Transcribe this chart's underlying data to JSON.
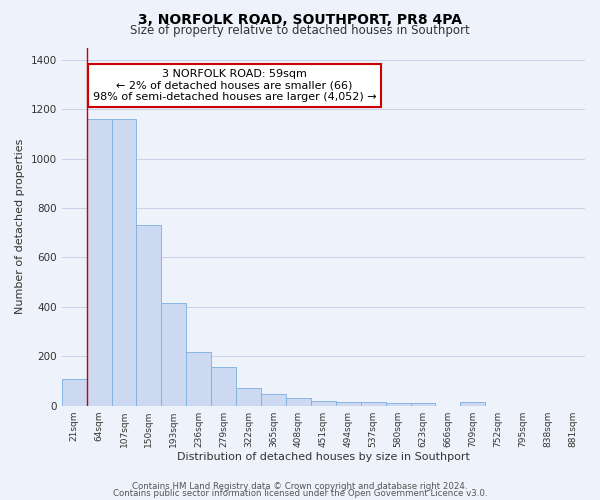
{
  "title": "3, NORFOLK ROAD, SOUTHPORT, PR8 4PA",
  "subtitle": "Size of property relative to detached houses in Southport",
  "xlabel": "Distribution of detached houses by size in Southport",
  "ylabel": "Number of detached properties",
  "bar_labels": [
    "21sqm",
    "64sqm",
    "107sqm",
    "150sqm",
    "193sqm",
    "236sqm",
    "279sqm",
    "322sqm",
    "365sqm",
    "408sqm",
    "451sqm",
    "494sqm",
    "537sqm",
    "580sqm",
    "623sqm",
    "666sqm",
    "709sqm",
    "752sqm",
    "795sqm",
    "838sqm",
    "881sqm"
  ],
  "bar_values": [
    107,
    1160,
    1160,
    730,
    415,
    218,
    155,
    70,
    48,
    30,
    20,
    15,
    13,
    12,
    12,
    0,
    13,
    0,
    0,
    0,
    0
  ],
  "bar_color": "#ccd9f0",
  "bar_edgecolor": "#7aafe0",
  "annotation_box_text": "3 NORFOLK ROAD: 59sqm\n← 2% of detached houses are smaller (66)\n98% of semi-detached houses are larger (4,052) →",
  "annotation_box_color": "#ffffff",
  "annotation_box_edgecolor": "#cc0000",
  "ylim": [
    0,
    1450
  ],
  "yticks": [
    0,
    200,
    400,
    600,
    800,
    1000,
    1200,
    1400
  ],
  "footer_line1": "Contains HM Land Registry data © Crown copyright and database right 2024.",
  "footer_line2": "Contains public sector information licensed under the Open Government Licence v3.0.",
  "bg_color": "#eef2fa",
  "grid_color": "#c8d0e8"
}
